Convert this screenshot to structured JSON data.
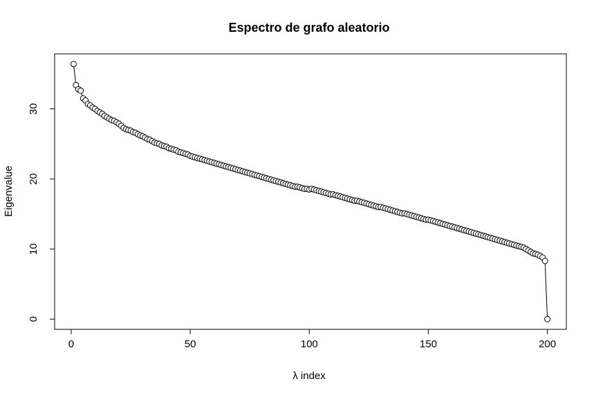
{
  "chart_data": {
    "type": "line",
    "title": "Espectro de grafo aleatorio",
    "x_label": "λ index",
    "y_label": "Eigenvalue",
    "x": [
      1,
      2,
      3,
      4,
      5,
      6,
      7,
      8,
      9,
      10,
      11,
      12,
      13,
      14,
      15,
      16,
      17,
      18,
      19,
      20,
      21,
      22,
      23,
      24,
      25,
      26,
      27,
      28,
      29,
      30,
      31,
      32,
      33,
      34,
      35,
      36,
      37,
      38,
      39,
      40,
      41,
      42,
      43,
      44,
      45,
      46,
      47,
      48,
      49,
      50,
      51,
      52,
      53,
      54,
      55,
      56,
      57,
      58,
      59,
      60,
      61,
      62,
      63,
      64,
      65,
      66,
      67,
      68,
      69,
      70,
      71,
      72,
      73,
      74,
      75,
      76,
      77,
      78,
      79,
      80,
      81,
      82,
      83,
      84,
      85,
      86,
      87,
      88,
      89,
      90,
      91,
      92,
      93,
      94,
      95,
      96,
      97,
      98,
      99,
      100,
      101,
      102,
      103,
      104,
      105,
      106,
      107,
      108,
      109,
      110,
      111,
      112,
      113,
      114,
      115,
      116,
      117,
      118,
      119,
      120,
      121,
      122,
      123,
      124,
      125,
      126,
      127,
      128,
      129,
      130,
      131,
      132,
      133,
      134,
      135,
      136,
      137,
      138,
      139,
      140,
      141,
      142,
      143,
      144,
      145,
      146,
      147,
      148,
      149,
      150,
      151,
      152,
      153,
      154,
      155,
      156,
      157,
      158,
      159,
      160,
      161,
      162,
      163,
      164,
      165,
      166,
      167,
      168,
      169,
      170,
      171,
      172,
      173,
      174,
      175,
      176,
      177,
      178,
      179,
      180,
      181,
      182,
      183,
      184,
      185,
      186,
      187,
      188,
      189,
      190,
      191,
      192,
      193,
      194,
      195,
      196,
      197,
      198,
      199,
      200
    ],
    "series": [
      {
        "name": "Eigenvalue",
        "color": "#000000",
        "values": [
          36.4,
          33.4,
          32.8,
          32.6,
          31.5,
          31.2,
          30.7,
          30.5,
          30.2,
          30.0,
          29.7,
          29.5,
          29.3,
          29.0,
          28.8,
          28.6,
          28.4,
          28.3,
          28.1,
          27.9,
          27.6,
          27.3,
          27.1,
          27.0,
          26.9,
          26.7,
          26.6,
          26.4,
          26.2,
          26.1,
          25.9,
          25.7,
          25.6,
          25.4,
          25.2,
          25.1,
          25.0,
          24.8,
          24.7,
          24.6,
          24.4,
          24.3,
          24.2,
          24.1,
          23.9,
          23.8,
          23.7,
          23.6,
          23.5,
          23.3,
          23.2,
          23.1,
          23.0,
          22.9,
          22.8,
          22.7,
          22.6,
          22.5,
          22.4,
          22.3,
          22.2,
          22.1,
          22.0,
          21.9,
          21.8,
          21.7,
          21.6,
          21.5,
          21.4,
          21.3,
          21.2,
          21.1,
          21.0,
          20.9,
          20.8,
          20.7,
          20.6,
          20.5,
          20.4,
          20.3,
          20.2,
          20.1,
          20.0,
          19.9,
          19.8,
          19.7,
          19.6,
          19.5,
          19.4,
          19.3,
          19.2,
          19.1,
          19.0,
          18.9,
          18.9,
          18.8,
          18.7,
          18.6,
          18.6,
          18.5,
          18.6,
          18.5,
          18.4,
          18.3,
          18.2,
          18.1,
          18.0,
          17.9,
          17.8,
          17.8,
          17.7,
          17.6,
          17.5,
          17.4,
          17.3,
          17.2,
          17.1,
          17.0,
          16.9,
          16.9,
          16.8,
          16.7,
          16.6,
          16.5,
          16.4,
          16.3,
          16.2,
          16.1,
          16.0,
          16.0,
          15.9,
          15.8,
          15.7,
          15.6,
          15.5,
          15.4,
          15.3,
          15.2,
          15.1,
          15.1,
          15.0,
          14.9,
          14.8,
          14.7,
          14.6,
          14.5,
          14.4,
          14.3,
          14.2,
          14.2,
          14.1,
          14.0,
          13.9,
          13.8,
          13.7,
          13.6,
          13.5,
          13.4,
          13.3,
          13.2,
          13.1,
          13.0,
          12.9,
          12.8,
          12.7,
          12.6,
          12.5,
          12.4,
          12.3,
          12.2,
          12.1,
          12.0,
          11.9,
          11.8,
          11.7,
          11.6,
          11.5,
          11.4,
          11.3,
          11.2,
          11.1,
          11.0,
          10.9,
          10.8,
          10.7,
          10.6,
          10.5,
          10.4,
          10.3,
          10.2,
          10.0,
          9.8,
          9.6,
          9.4,
          9.3,
          9.2,
          9.0,
          8.8,
          8.3,
          0.0
        ]
      }
    ],
    "xlim": [
      -6.96,
      207.96
    ],
    "xticks": [
      0,
      50,
      100,
      150,
      200
    ],
    "ylim": [
      -1.456,
      37.856
    ],
    "yticks": [
      0,
      10,
      20,
      30
    ],
    "grid": false
  }
}
